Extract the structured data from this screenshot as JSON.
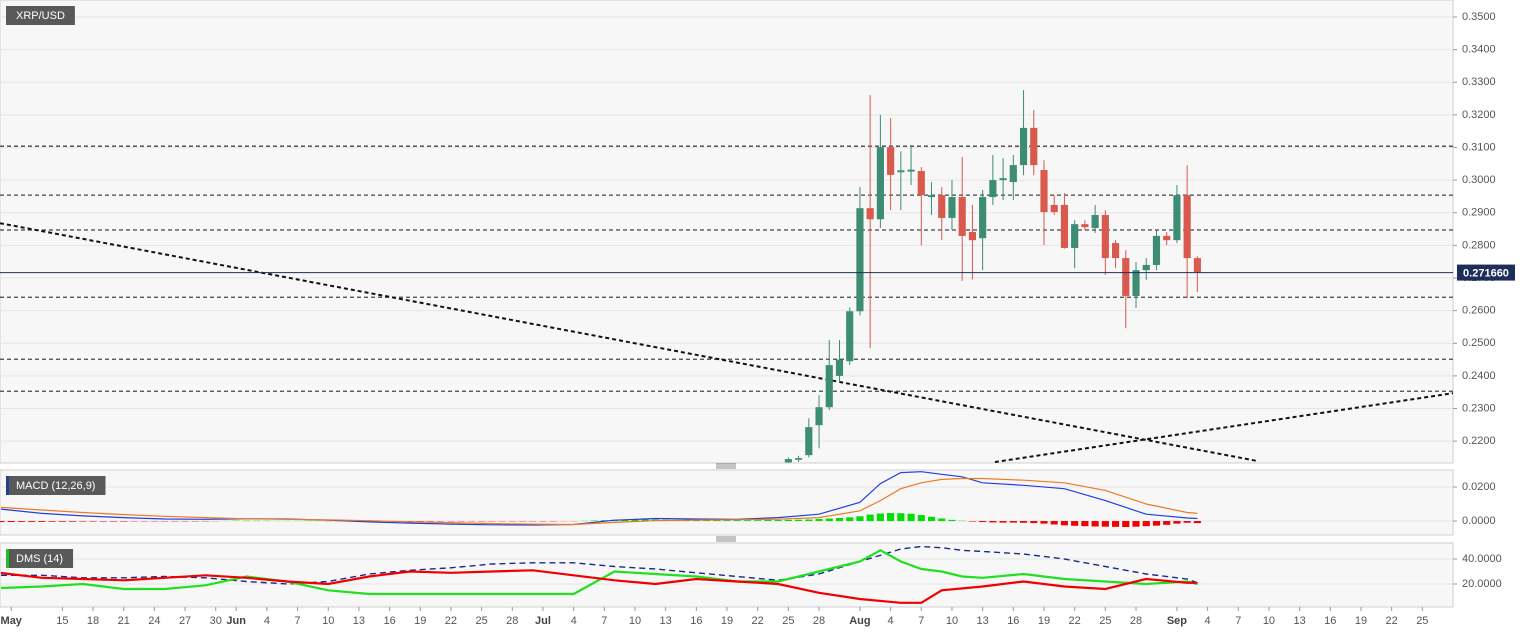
{
  "chart_data": [
    {
      "type": "candlestick",
      "title": "XRP/USD",
      "xlim": [
        -84.1,
        58
      ],
      "ylim": [
        0.2133,
        0.3552
      ],
      "yticks": [
        {
          "value": 0.22,
          "label": "0.2200"
        },
        {
          "value": 0.23,
          "label": "0.2300"
        },
        {
          "value": 0.24,
          "label": "0.2400"
        },
        {
          "value": 0.25,
          "label": "0.2500"
        },
        {
          "value": 0.26,
          "label": "0.2600"
        },
        {
          "value": 0.27,
          "label": "0.2700"
        },
        {
          "value": 0.28,
          "label": "0.2800"
        },
        {
          "value": 0.29,
          "label": "0.2900"
        },
        {
          "value": 0.3,
          "label": "0.3000"
        },
        {
          "value": 0.31,
          "label": "0.3100"
        },
        {
          "value": 0.32,
          "label": "0.3200"
        },
        {
          "value": 0.33,
          "label": "0.3300"
        },
        {
          "value": 0.34,
          "label": "0.3400"
        },
        {
          "value": 0.35,
          "label": "0.3500"
        }
      ],
      "grid": true,
      "up_color": "#3d8c74",
      "down_color": "#d9594c",
      "x": [
        -7,
        -6,
        -5,
        -4,
        -3,
        -2,
        -1,
        0,
        1,
        2,
        3,
        4,
        5,
        6,
        7,
        8,
        9,
        10,
        11,
        12,
        13,
        14,
        15,
        16,
        17,
        18,
        19,
        20,
        21,
        22,
        23,
        24,
        25,
        26,
        27,
        28,
        29,
        30,
        31,
        32,
        33
      ],
      "open": [
        0.2135,
        0.2143,
        0.2157,
        0.2249,
        0.2304,
        0.24,
        0.2445,
        0.2598,
        0.2914,
        0.288,
        0.3101,
        0.3024,
        0.3026,
        0.3028,
        0.2948,
        0.2954,
        0.2884,
        0.2948,
        0.2841,
        0.2822,
        0.2948,
        0.3,
        0.2994,
        0.3046,
        0.316,
        0.3031,
        0.2924,
        0.2924,
        0.2792,
        0.2865,
        0.2853,
        0.2893,
        0.2807,
        0.2761,
        0.2645,
        0.2724,
        0.274,
        0.2829,
        0.2816,
        0.2954,
        0.2761
      ],
      "high": [
        0.215,
        0.2155,
        0.227,
        0.2341,
        0.251,
        0.251,
        0.261,
        0.2979,
        0.3261,
        0.32,
        0.319,
        0.3088,
        0.3108,
        0.304,
        0.2994,
        0.2979,
        0.3,
        0.3071,
        0.2924,
        0.297,
        0.3077,
        0.3067,
        0.3077,
        0.3276,
        0.3215,
        0.3061,
        0.2954,
        0.296,
        0.2877,
        0.2877,
        0.2924,
        0.2908,
        0.2816,
        0.2785,
        0.2749,
        0.2761,
        0.2847,
        0.2841,
        0.2985,
        0.3046,
        0.2767
      ],
      "low": [
        0.2133,
        0.2136,
        0.215,
        0.2178,
        0.2295,
        0.238,
        0.2433,
        0.2585,
        0.2485,
        0.2853,
        0.2908,
        0.2908,
        0.2985,
        0.28,
        0.2893,
        0.2816,
        0.2847,
        0.2691,
        0.2695,
        0.2724,
        0.2924,
        0.2939,
        0.2939,
        0.3015,
        0.3015,
        0.2801,
        0.2893,
        0.279,
        0.273,
        0.2847,
        0.2838,
        0.271,
        0.273,
        0.2546,
        0.2608,
        0.2694,
        0.2724,
        0.2801,
        0.2807,
        0.2638,
        0.2657
      ],
      "close": [
        0.2145,
        0.2148,
        0.2243,
        0.2304,
        0.2433,
        0.245,
        0.2598,
        0.2914,
        0.288,
        0.3101,
        0.3016,
        0.303,
        0.3032,
        0.2954,
        0.2954,
        0.2884,
        0.2948,
        0.2829,
        0.2816,
        0.2948,
        0.3,
        0.3006,
        0.3046,
        0.316,
        0.3046,
        0.2902,
        0.2902,
        0.2792,
        0.2865,
        0.2856,
        0.2893,
        0.2761,
        0.2761,
        0.2645,
        0.2724,
        0.274,
        0.2829,
        0.2816,
        0.2954,
        0.2761,
        0.2718
      ],
      "levels": [
        0.3104,
        0.2954,
        0.2847,
        0.2641,
        0.2451,
        0.2353
      ],
      "trend_lines": [
        {
          "x": [
            -84.1,
            38.9
          ],
          "y": [
            0.2868,
            0.2139
          ]
        },
        {
          "x": [
            13.2,
            58
          ],
          "y": [
            0.2136,
            0.2347
          ]
        }
      ],
      "last_price": 0.27166,
      "last_price_label": "0.271660",
      "last_price_color": "#1f2d5a"
    },
    {
      "type": "macd",
      "title": "MACD (12,26,9)",
      "title_color": "#2b3d8f",
      "xlim": [
        -84.1,
        58
      ],
      "ylim": [
        -0.0082,
        0.03
      ],
      "yticks": [
        {
          "value": 0.0,
          "label": "0.0000"
        },
        {
          "value": 0.02,
          "label": "0.0200"
        }
      ],
      "grid": true,
      "histogram": {
        "up_color": "#00e000",
        "down_color": "#f00000",
        "x": [
          -84,
          -83,
          -82,
          -81,
          -80,
          -79,
          -78,
          -77,
          -76,
          -75,
          -74,
          -73,
          -72,
          -71,
          -70,
          -69,
          -68,
          -67,
          -66,
          -65,
          -64,
          -63,
          -62,
          -61,
          -60,
          -59,
          -58,
          -57,
          -56,
          -55,
          -54,
          -53,
          -52,
          -51,
          -50,
          -49,
          -48,
          -47,
          -46,
          -45,
          -44,
          -43,
          -42,
          -41,
          -40,
          -39,
          -38,
          -37,
          -36,
          -35,
          -34,
          -33,
          -32,
          -31,
          -30,
          -29,
          -28,
          -27,
          -26,
          -25,
          -24,
          -23,
          -22,
          -21,
          -20,
          -19,
          -18,
          -17,
          -16,
          -15,
          -14,
          -13,
          -12,
          -11,
          -10,
          -9,
          -8,
          -7,
          -6,
          -5,
          -4,
          -3,
          -2,
          -1,
          0,
          1,
          2,
          3,
          4,
          5,
          6,
          7,
          8,
          9,
          10,
          11,
          12,
          13,
          14,
          15,
          16,
          17,
          18,
          19,
          20,
          21,
          22,
          23,
          24,
          25,
          26,
          27,
          28,
          29,
          30,
          31,
          32,
          33
        ],
        "values": [
          -0.0006,
          -0.0006,
          -0.0005,
          -0.0005,
          -0.0005,
          -0.0004,
          -0.0004,
          -0.0004,
          -0.0003,
          -0.0003,
          -0.0003,
          -0.0003,
          -0.0003,
          -0.0002,
          -0.0002,
          -0.0002,
          -0.0002,
          -0.0002,
          -0.0002,
          -0.0002,
          -0.0002,
          -0.0001,
          0.0001,
          0.0002,
          0.0002,
          0.0002,
          0.0002,
          0.0001,
          0.0001,
          0.0001,
          0.0001,
          0.0001,
          -0.0001,
          -0.0001,
          -0.0002,
          -0.0002,
          -0.0002,
          -0.0002,
          -0.0002,
          -0.0002,
          -0.0002,
          -0.0002,
          -0.0002,
          -0.0002,
          -0.0002,
          -0.0002,
          -0.0002,
          -0.0002,
          -0.0002,
          -0.0002,
          -0.0002,
          -0.0002,
          -0.0002,
          -0.0002,
          -0.0002,
          -0.0001,
          -0.0001,
          0.0001,
          0.0003,
          0.0005,
          0.0007,
          0.0009,
          0.001,
          0.001,
          0.0009,
          0.0008,
          0.0007,
          0.0007,
          0.0006,
          0.0006,
          0.0005,
          0.0005,
          0.0005,
          0.0005,
          0.0005,
          0.0006,
          0.0006,
          0.0007,
          0.0008,
          0.0009,
          0.0012,
          0.0015,
          0.0018,
          0.0022,
          0.0028,
          0.0038,
          0.0044,
          0.0047,
          0.0046,
          0.0043,
          0.0035,
          0.0025,
          0.0015,
          0.0007,
          0.0002,
          -0.0003,
          -0.0006,
          -0.0008,
          -0.0009,
          -0.0009,
          -0.001,
          -0.0012,
          -0.0015,
          -0.002,
          -0.0025,
          -0.0028,
          -0.003,
          -0.0032,
          -0.0033,
          -0.0034,
          -0.0035,
          -0.0033,
          -0.003,
          -0.0027,
          -0.0022,
          -0.0015,
          -0.001,
          -0.0012
        ]
      },
      "series": [
        {
          "color": "#2040e0",
          "x": [
            -84,
            -80,
            -76,
            -72,
            -68,
            -64,
            -60,
            -56,
            -52,
            -48,
            -44,
            -40,
            -36,
            -32,
            -28,
            -24,
            -20,
            -16,
            -12,
            -8,
            -4,
            0,
            2,
            4,
            6,
            8,
            10,
            12,
            16,
            20,
            24,
            28,
            32,
            33
          ],
          "values": [
            0.007,
            0.0045,
            0.003,
            0.002,
            0.0012,
            0.001,
            0.0013,
            0.0012,
            0.0005,
            -0.0005,
            -0.0012,
            -0.0018,
            -0.0022,
            -0.0023,
            -0.002,
            0.0005,
            0.0015,
            0.0012,
            0.001,
            0.002,
            0.004,
            0.011,
            0.022,
            0.0285,
            0.029,
            0.0275,
            0.026,
            0.0225,
            0.021,
            0.019,
            0.012,
            0.004,
            0.0018,
            0.0015
          ]
        },
        {
          "color": "#f07820",
          "x": [
            -84,
            -80,
            -76,
            -72,
            -68,
            -64,
            -60,
            -56,
            -52,
            -48,
            -44,
            -40,
            -36,
            -32,
            -28,
            -24,
            -20,
            -16,
            -12,
            -8,
            -4,
            0,
            2,
            4,
            6,
            8,
            10,
            12,
            16,
            20,
            24,
            28,
            32,
            33
          ],
          "values": [
            0.008,
            0.0065,
            0.005,
            0.0038,
            0.0028,
            0.002,
            0.0013,
            0.001,
            0.0007,
            0.0002,
            -0.0005,
            -0.001,
            -0.0015,
            -0.0018,
            -0.002,
            -0.0008,
            0.0002,
            0.0006,
            0.0008,
            0.0011,
            0.002,
            0.006,
            0.012,
            0.019,
            0.0225,
            0.0245,
            0.025,
            0.025,
            0.024,
            0.0225,
            0.018,
            0.01,
            0.005,
            0.0045
          ]
        }
      ]
    },
    {
      "type": "dms",
      "title": "DMS (14)",
      "title_color": "#20c020",
      "xlim": [
        -84.1,
        58
      ],
      "ylim": [
        1.6,
        52.8
      ],
      "yticks": [
        {
          "value": 20,
          "label": "20.0000"
        },
        {
          "value": 40,
          "label": "40.0000"
        }
      ],
      "grid": true,
      "xticks": [
        {
          "value": -83,
          "label": "May"
        },
        {
          "value": -78,
          "label": "15"
        },
        {
          "value": -75,
          "label": "18"
        },
        {
          "value": -72,
          "label": "21"
        },
        {
          "value": -69,
          "label": "24"
        },
        {
          "value": -66,
          "label": "27"
        },
        {
          "value": -63,
          "label": "30"
        },
        {
          "value": -61,
          "label": "Jun"
        },
        {
          "value": -58,
          "label": "4"
        },
        {
          "value": -55,
          "label": "7"
        },
        {
          "value": -52,
          "label": "10"
        },
        {
          "value": -49,
          "label": "13"
        },
        {
          "value": -46,
          "label": "16"
        },
        {
          "value": -43,
          "label": "19"
        },
        {
          "value": -40,
          "label": "22"
        },
        {
          "value": -37,
          "label": "25"
        },
        {
          "value": -34,
          "label": "28"
        },
        {
          "value": -31,
          "label": "Jul"
        },
        {
          "value": -28,
          "label": "4"
        },
        {
          "value": -25,
          "label": "7"
        },
        {
          "value": -22,
          "label": "10"
        },
        {
          "value": -19,
          "label": "13"
        },
        {
          "value": -16,
          "label": "16"
        },
        {
          "value": -13,
          "label": "19"
        },
        {
          "value": -10,
          "label": "22"
        },
        {
          "value": -7,
          "label": "25"
        },
        {
          "value": -4,
          "label": "28"
        },
        {
          "value": 0,
          "label": "Aug"
        },
        {
          "value": 3,
          "label": "4"
        },
        {
          "value": 6,
          "label": "7"
        },
        {
          "value": 9,
          "label": "10"
        },
        {
          "value": 12,
          "label": "13"
        },
        {
          "value": 15,
          "label": "16"
        },
        {
          "value": 18,
          "label": "19"
        },
        {
          "value": 21,
          "label": "22"
        },
        {
          "value": 24,
          "label": "25"
        },
        {
          "value": 27,
          "label": "28"
        },
        {
          "value": 31,
          "label": "Sep"
        },
        {
          "value": 34,
          "label": "4"
        },
        {
          "value": 37,
          "label": "7"
        },
        {
          "value": 40,
          "label": "10"
        },
        {
          "value": 43,
          "label": "13"
        },
        {
          "value": 46,
          "label": "16"
        },
        {
          "value": 49,
          "label": "19"
        },
        {
          "value": 52,
          "label": "22"
        },
        {
          "value": 55,
          "label": "25"
        }
      ],
      "series": [
        {
          "color": "#1a2a8a",
          "style": "dashed",
          "x": [
            -84,
            -80,
            -76,
            -72,
            -68,
            -64,
            -60,
            -56,
            -52,
            -48,
            -44,
            -40,
            -36,
            -32,
            -28,
            -24,
            -20,
            -16,
            -12,
            -8,
            -4,
            0,
            2,
            4,
            6,
            8,
            10,
            12,
            16,
            20,
            24,
            28,
            32,
            33
          ],
          "values": [
            27,
            27,
            25,
            25,
            26,
            25,
            22,
            20,
            22,
            28,
            31,
            33,
            36,
            37,
            37,
            34,
            32,
            29,
            26,
            23,
            28,
            38,
            43,
            48,
            50,
            49,
            47,
            46,
            44,
            40,
            34,
            28,
            24,
            21
          ]
        },
        {
          "color": "#20e020",
          "style": "solid",
          "x": [
            -84,
            -80,
            -76,
            -72,
            -68,
            -64,
            -60,
            -56,
            -52,
            -48,
            -44,
            -40,
            -36,
            -32,
            -28,
            -24,
            -20,
            -16,
            -12,
            -8,
            -4,
            0,
            2,
            4,
            6,
            8,
            10,
            12,
            16,
            20,
            24,
            28,
            32,
            33
          ],
          "values": [
            16.8,
            18,
            20,
            16,
            16,
            19,
            26,
            22,
            15,
            12,
            12,
            12,
            12,
            12,
            12,
            30,
            28,
            26,
            22,
            22,
            30,
            38,
            47,
            38,
            32,
            30,
            26,
            25,
            28,
            24,
            22,
            20,
            22,
            20
          ]
        },
        {
          "color": "#f00000",
          "style": "solid",
          "x": [
            -84,
            -80,
            -76,
            -72,
            -68,
            -64,
            -60,
            -56,
            -52,
            -48,
            -44,
            -40,
            -36,
            -32,
            -28,
            -24,
            -20,
            -16,
            -12,
            -8,
            -4,
            0,
            4,
            6,
            8,
            12,
            16,
            20,
            24,
            28,
            32,
            33
          ],
          "values": [
            28.8,
            25,
            24,
            23,
            25,
            27,
            25,
            22,
            20,
            26,
            30,
            29,
            30,
            31,
            27,
            23,
            20,
            24,
            22,
            20,
            13,
            8,
            5,
            5,
            15,
            18,
            22,
            18,
            16,
            24,
            21,
            21
          ]
        }
      ]
    }
  ]
}
